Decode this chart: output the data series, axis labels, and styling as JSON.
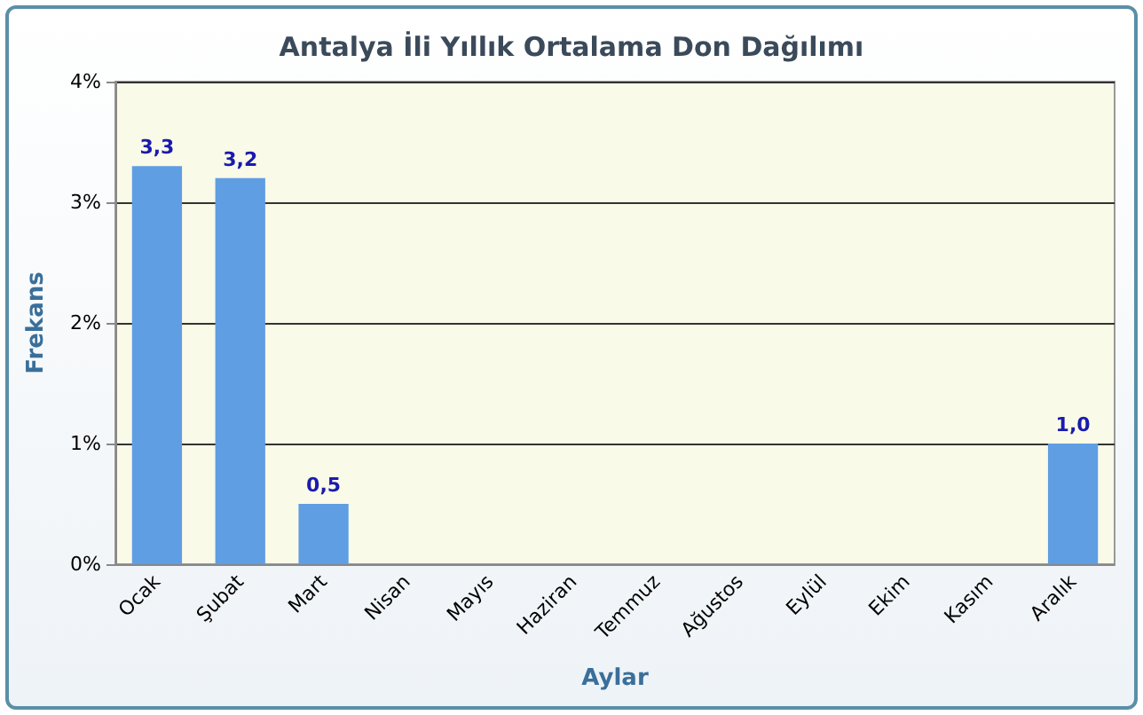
{
  "chart_data": {
    "type": "bar",
    "title": "Antalya İli Yıllık Ortalama Don Dağılımı",
    "xlabel": "Aylar",
    "ylabel": "Frekans",
    "categories": [
      "Ocak",
      "Şubat",
      "Mart",
      "Nisan",
      "Mayıs",
      "Haziran",
      "Temmuz",
      "Ağustos",
      "Eylül",
      "Ekim",
      "Kasım",
      "Aralık"
    ],
    "values": [
      3.3,
      3.2,
      0.5,
      0,
      0,
      0,
      0,
      0,
      0,
      0,
      0,
      1.0
    ],
    "value_labels": [
      "3,3",
      "3,2",
      "0,5",
      null,
      null,
      null,
      null,
      null,
      null,
      null,
      null,
      "1,0"
    ],
    "color": "#5f9ee3",
    "ylim": [
      0,
      4
    ],
    "yticks": [
      {
        "value": 0,
        "label": "0%"
      },
      {
        "value": 1,
        "label": "1%"
      },
      {
        "value": 2,
        "label": "2%"
      },
      {
        "value": 3,
        "label": "3%"
      },
      {
        "value": 4,
        "label": "4%"
      }
    ],
    "grid": "y"
  }
}
